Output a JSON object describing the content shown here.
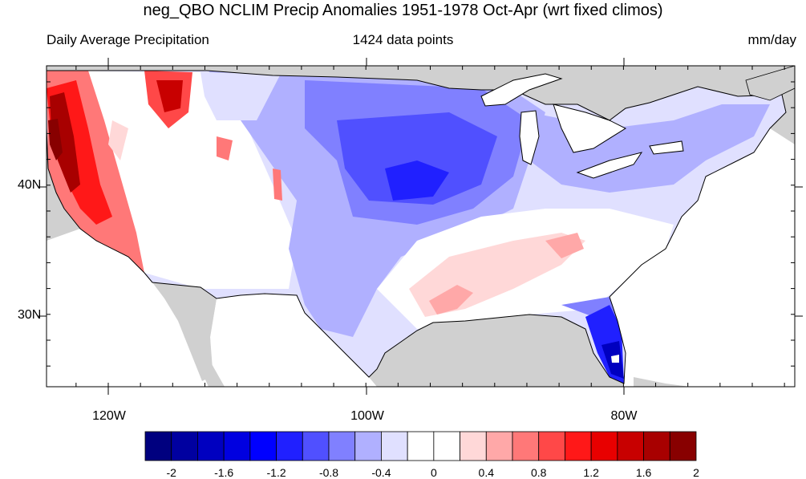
{
  "title": "neg_QBO NCLIM Precip Anomalies 1951-1978 Oct-Apr (wrt fixed climos)",
  "subtitle_left": "Daily Average Precipitation",
  "subtitle_center": "1424 data points",
  "subtitle_right": "mm/day",
  "lat_labels": [
    "40N",
    "30N"
  ],
  "lon_labels": [
    "120W",
    "100W",
    "80W"
  ],
  "colorbar": {
    "colors": [
      "#00007f",
      "#0000a0",
      "#0000c0",
      "#0000e0",
      "#0000ff",
      "#2020ff",
      "#5050ff",
      "#8080ff",
      "#b0b0ff",
      "#e0e0ff",
      "#ffffff",
      "#ffffff",
      "#ffd8d8",
      "#ffa8a8",
      "#ff7878",
      "#ff4848",
      "#ff1818",
      "#e80000",
      "#c80000",
      "#a80000",
      "#880000"
    ],
    "labels": [
      "-2",
      "-1.6",
      "-1.2",
      "-0.8",
      "-0.4",
      "0",
      "0.4",
      "0.8",
      "1.2",
      "1.6",
      "2"
    ]
  },
  "colors": {
    "land_masked": "#d0d0d0",
    "water": "#ffffff",
    "wet_anomaly": "#cc0000",
    "dry_anomaly": "#3030ff"
  }
}
